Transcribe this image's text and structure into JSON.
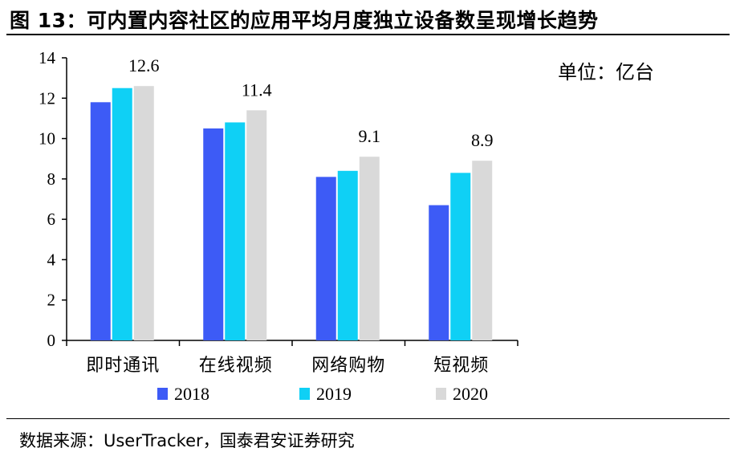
{
  "header": {
    "title": "图 13：可内置内容社区的应用平均月度独立设备数呈现增长趋势"
  },
  "unit_label": "单位：亿台",
  "footer": {
    "source": "数据来源：UserTracker，国泰君安证券研究"
  },
  "chart_data": {
    "type": "bar",
    "categories": [
      "即时通讯",
      "在线视频",
      "网络购物",
      "短视频"
    ],
    "series": [
      {
        "name": "2018",
        "color": "#3d5bf6",
        "values": [
          11.8,
          10.5,
          8.1,
          6.7
        ]
      },
      {
        "name": "2019",
        "color": "#0fd0f5",
        "values": [
          12.5,
          10.8,
          8.4,
          8.3
        ]
      },
      {
        "name": "2020",
        "color": "#d9d9d9",
        "values": [
          12.6,
          11.4,
          9.1,
          8.9
        ]
      }
    ],
    "data_labels": [
      {
        "category": "即时通讯",
        "series": "2020",
        "text": "12.6"
      },
      {
        "category": "在线视频",
        "series": "2020",
        "text": "11.4"
      },
      {
        "category": "网络购物",
        "series": "2020",
        "text": "9.1"
      },
      {
        "category": "短视频",
        "series": "2020",
        "text": "8.9"
      }
    ],
    "y_ticks": [
      "0",
      "2",
      "4",
      "6",
      "8",
      "10",
      "12",
      "14"
    ],
    "ylim": [
      0,
      14
    ],
    "grid": false,
    "legend_position": "bottom",
    "xlabel": "",
    "ylabel": ""
  }
}
